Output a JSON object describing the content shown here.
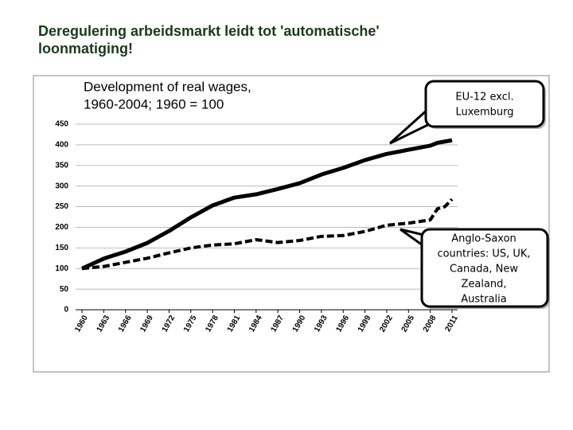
{
  "slide_title": "Deregulering arbeidsmarkt leidt tot 'automatische' loonmatiging!",
  "chart_data": {
    "type": "line",
    "title_lines": [
      "Development of real wages,",
      "1960-2004; 1960 = 100"
    ],
    "x": [
      1960,
      1963,
      1966,
      1969,
      1972,
      1975,
      1978,
      1981,
      1984,
      1987,
      1990,
      1993,
      1996,
      1999,
      2002,
      2005,
      2008,
      2009,
      2010,
      2011
    ],
    "xlim": [
      1960,
      2011
    ],
    "xticks": [
      1960,
      1963,
      1966,
      1969,
      1972,
      1975,
      1978,
      1981,
      1984,
      1987,
      1990,
      1993,
      1996,
      1999,
      2002,
      2005,
      2008,
      2011
    ],
    "ylim": [
      0,
      450
    ],
    "yticks": [
      0,
      50,
      100,
      150,
      200,
      250,
      300,
      350,
      400,
      450
    ],
    "grid": true,
    "series": [
      {
        "color": "#000000",
        "dash": false,
        "values": [
          100,
          124,
          141,
          162,
          191,
          224,
          253,
          272,
          280,
          293,
          307,
          328,
          344,
          363,
          378,
          388,
          398,
          405,
          408,
          411
        ]
      },
      {
        "color": "#000000",
        "dash": true,
        "values": [
          100,
          105,
          115,
          125,
          138,
          150,
          157,
          160,
          170,
          163,
          168,
          178,
          180,
          190,
          205,
          210,
          218,
          245,
          250,
          268
        ]
      }
    ],
    "annotations": [
      {
        "lines": [
          "EU-12 excl.",
          "Luxemburg"
        ]
      },
      {
        "lines": [
          "Anglo-Saxon",
          "countries: US, UK,",
          "Canada, New",
          "Zealand,",
          "Australia"
        ]
      }
    ]
  }
}
